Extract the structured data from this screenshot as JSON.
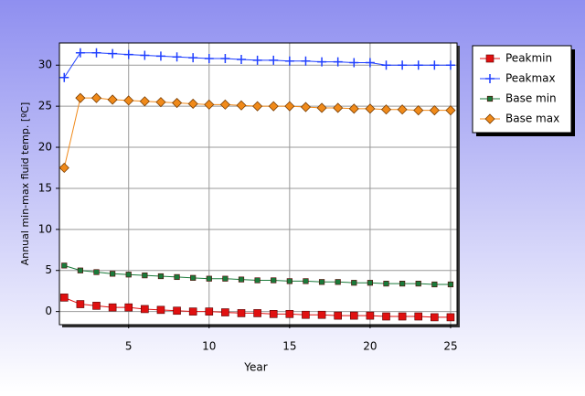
{
  "chart_data": {
    "type": "line",
    "xlabel": "Year",
    "ylabel": "Annual min-max fluid temp. [ºC]",
    "x": [
      1,
      2,
      3,
      4,
      5,
      6,
      7,
      8,
      9,
      10,
      11,
      12,
      13,
      14,
      15,
      16,
      17,
      18,
      19,
      20,
      21,
      22,
      23,
      24,
      25
    ],
    "series": [
      {
        "name": "Peakmin",
        "color": "#e01010",
        "marker": "square",
        "values": [
          1.7,
          0.9,
          0.7,
          0.5,
          0.5,
          0.3,
          0.2,
          0.1,
          0.0,
          0.0,
          -0.1,
          -0.2,
          -0.2,
          -0.3,
          -0.3,
          -0.4,
          -0.4,
          -0.5,
          -0.5,
          -0.5,
          -0.6,
          -0.6,
          -0.6,
          -0.7,
          -0.7
        ]
      },
      {
        "name": "Peakmax",
        "color": "#1f3fff",
        "marker": "plus",
        "values": [
          28.5,
          31.5,
          31.5,
          31.4,
          31.3,
          31.2,
          31.1,
          31.0,
          30.9,
          30.8,
          30.8,
          30.7,
          30.6,
          30.6,
          30.5,
          30.5,
          30.4,
          30.4,
          30.3,
          30.3,
          30.0,
          30.0,
          30.0,
          30.0,
          30.0
        ]
      },
      {
        "name": "Base min",
        "color": "#1a7a3a",
        "marker": "square",
        "values": [
          5.6,
          5.0,
          4.8,
          4.6,
          4.5,
          4.4,
          4.3,
          4.2,
          4.1,
          4.0,
          4.0,
          3.9,
          3.8,
          3.8,
          3.7,
          3.7,
          3.6,
          3.6,
          3.5,
          3.5,
          3.4,
          3.4,
          3.4,
          3.3,
          3.3
        ]
      },
      {
        "name": "Base max",
        "color": "#f08a1a",
        "marker": "diamond",
        "values": [
          17.5,
          26.0,
          26.0,
          25.8,
          25.7,
          25.6,
          25.5,
          25.4,
          25.3,
          25.2,
          25.2,
          25.1,
          25.0,
          25.0,
          25.0,
          24.9,
          24.8,
          24.8,
          24.7,
          24.7,
          24.6,
          24.6,
          24.5,
          24.5,
          24.5
        ]
      }
    ],
    "xlim": [
      0.7,
      25.4
    ],
    "xticks": [
      5,
      10,
      15,
      20,
      25
    ],
    "ylim": [
      -1.6,
      32.7
    ],
    "yticks": [
      0,
      5,
      10,
      15,
      20,
      25,
      30
    ],
    "grid": true,
    "legend": "right"
  }
}
